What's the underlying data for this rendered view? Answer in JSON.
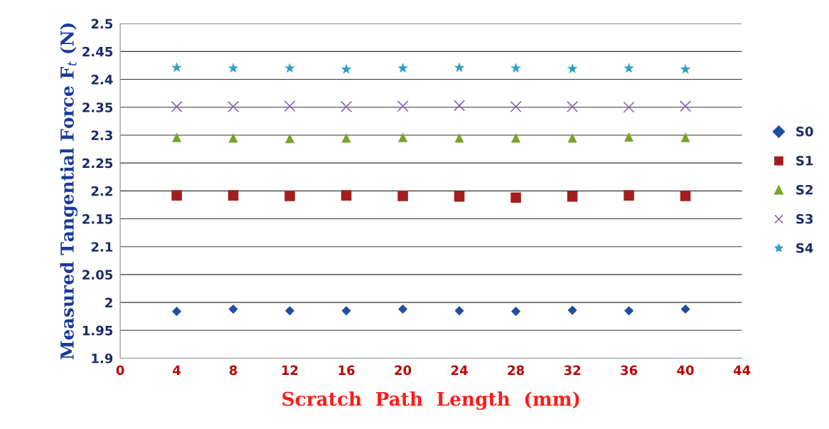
{
  "chart_data": {
    "type": "scatter",
    "xlabel": "Scratch  Path  Length  (mm)",
    "ylabel": "Measured Tangential Force F$_{t}$ (N)",
    "x": [
      4,
      8,
      12,
      16,
      20,
      24,
      28,
      32,
      36,
      40
    ],
    "xlim": [
      0,
      44
    ],
    "xticks": [
      0,
      4,
      8,
      12,
      16,
      20,
      24,
      28,
      32,
      36,
      40,
      44
    ],
    "ylim": [
      1.9,
      2.5
    ],
    "yticks": [
      1.9,
      1.95,
      2,
      2.05,
      2.1,
      2.15,
      2.2,
      2.25,
      2.3,
      2.35,
      2.4,
      2.45,
      2.5
    ],
    "grid": "y",
    "legend": "right",
    "series": [
      {
        "name": "S0",
        "color": "#1f4fa0",
        "marker": "diamond",
        "values": [
          1.984,
          1.988,
          1.985,
          1.985,
          1.988,
          1.985,
          1.984,
          1.986,
          1.985,
          1.988
        ]
      },
      {
        "name": "S1",
        "color": "#a31f1f",
        "marker": "square",
        "values": [
          2.192,
          2.192,
          2.191,
          2.192,
          2.191,
          2.19,
          2.188,
          2.19,
          2.192,
          2.191
        ]
      },
      {
        "name": "S2",
        "color": "#76a52a",
        "marker": "triangle",
        "values": [
          2.296,
          2.295,
          2.294,
          2.295,
          2.296,
          2.295,
          2.295,
          2.295,
          2.297,
          2.296
        ]
      },
      {
        "name": "S3",
        "color": "#8466b0",
        "marker": "cross",
        "values": [
          2.351,
          2.351,
          2.352,
          2.351,
          2.352,
          2.353,
          2.351,
          2.351,
          2.35,
          2.352
        ]
      },
      {
        "name": "S4",
        "color": "#29a0c8",
        "marker": "star",
        "values": [
          2.421,
          2.42,
          2.42,
          2.418,
          2.42,
          2.421,
          2.42,
          2.419,
          2.42,
          2.418
        ]
      }
    ]
  }
}
